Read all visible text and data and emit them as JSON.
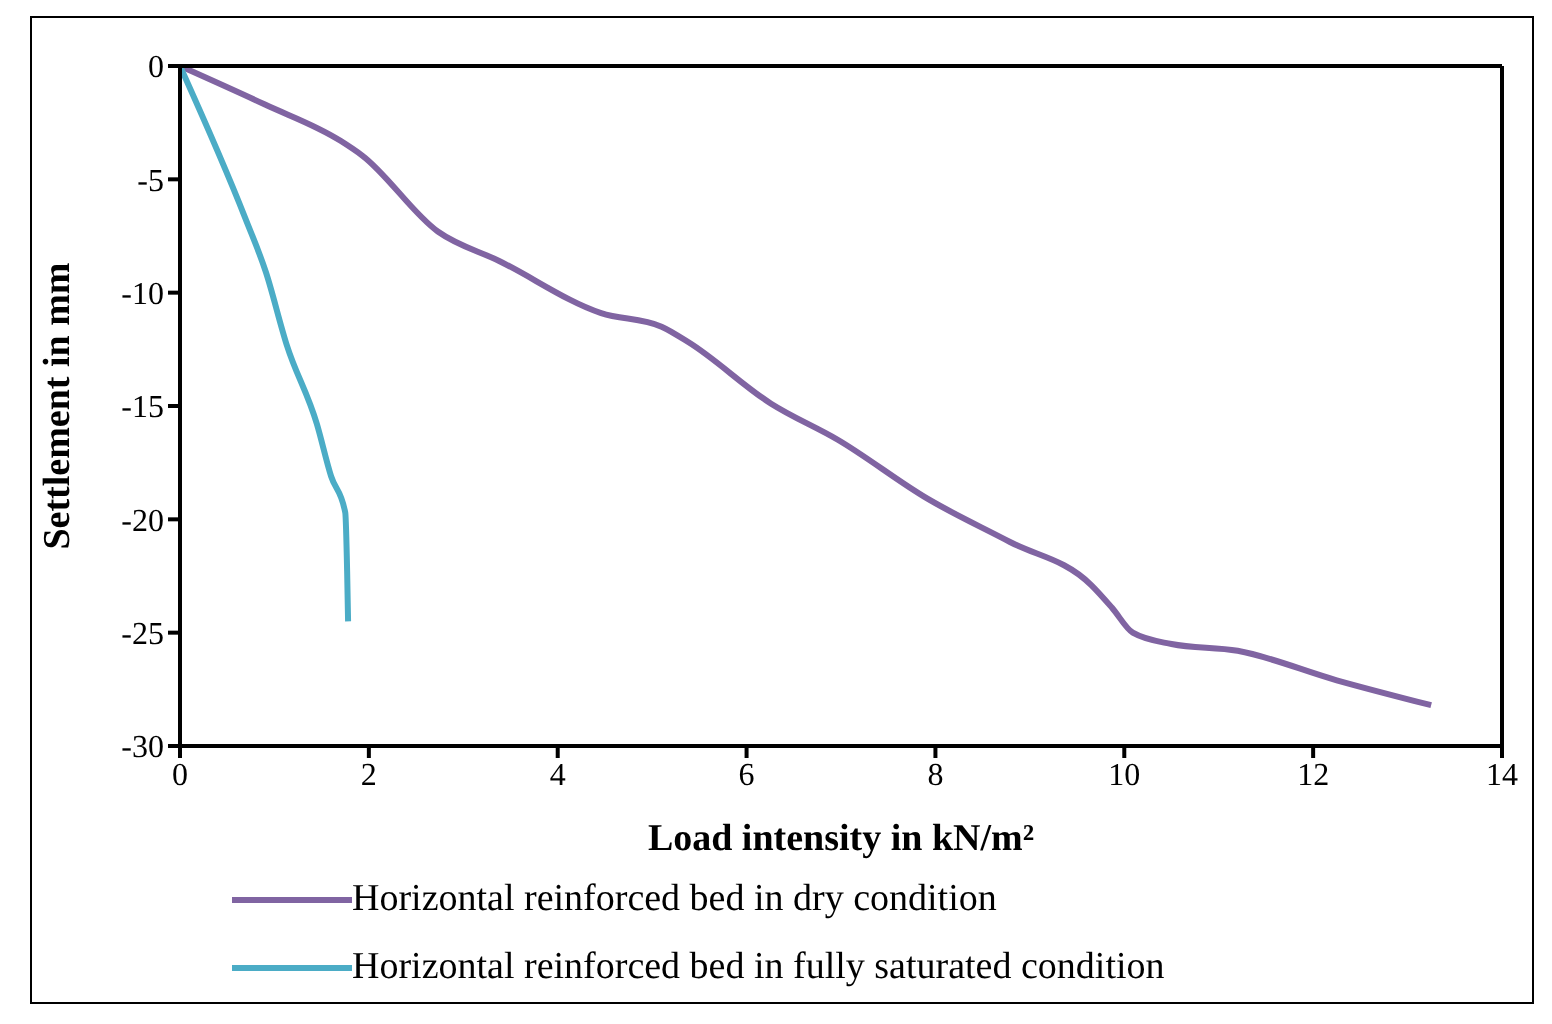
{
  "chart_data": {
    "type": "line",
    "xlabel": "Load intensity in kN/m²",
    "ylabel": "Settlement in mm",
    "xlim": [
      0,
      14
    ],
    "xticks": [
      0,
      2,
      4,
      6,
      8,
      10,
      12,
      14
    ],
    "ylim": [
      -30,
      0
    ],
    "yticks": [
      -30,
      -25,
      -20,
      -15,
      -10,
      -5,
      0
    ],
    "grid": false,
    "legend": "bottom",
    "marker": "none",
    "line_style": "solid",
    "series": [
      {
        "name": "Horizontal reinforced bed in dry condition",
        "color": "#8064a2",
        "x": [
          0,
          0.9,
          1.7,
          1.93,
          2.73,
          3.38,
          4.46,
          5.1,
          5.39,
          6.26,
          6.97,
          7.92,
          8.79,
          9.65,
          9.87,
          10.09,
          10.5,
          11.2,
          12.25,
          13.25
        ],
        "values": [
          0,
          -1.7,
          -3.3,
          -3.95,
          -7.3,
          -8.6,
          -10.9,
          -11.5,
          -12.2,
          -14.9,
          -16.5,
          -19.1,
          -21.0,
          -22.9,
          -23.9,
          -25.0,
          -25.5,
          -25.8,
          -27.1,
          -28.2
        ]
      },
      {
        "name": "Horizontal reinforced bed in fully saturated condition",
        "color": "#4bacc6",
        "x": [
          0,
          0.69,
          0.91,
          1.13,
          1.45,
          1.6,
          1.75,
          1.77,
          1.78
        ],
        "values": [
          0,
          -6.7,
          -9.1,
          -12.3,
          -15.8,
          -18.1,
          -19.7,
          -22.3,
          -24.5
        ]
      }
    ]
  }
}
